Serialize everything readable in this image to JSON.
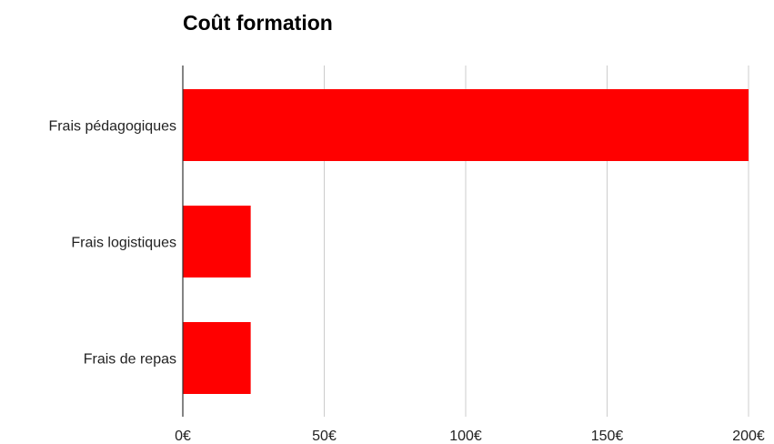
{
  "chart_data": {
    "type": "bar",
    "orientation": "horizontal",
    "title": "Coût formation",
    "categories": [
      "Frais pédagogiques",
      "Frais logistiques",
      "Frais de repas"
    ],
    "values": [
      200,
      24,
      24
    ],
    "xlim": [
      0,
      200
    ],
    "x_ticks": [
      0,
      50,
      100,
      150,
      200
    ],
    "x_tick_labels": [
      "0€",
      "50€",
      "100€",
      "150€",
      "200€"
    ],
    "xlabel": "",
    "ylabel": "",
    "grid": true,
    "legend": "none",
    "colors": {
      "bar": "#ff0000",
      "grid": "#cccccc",
      "axis": "#333333"
    }
  }
}
